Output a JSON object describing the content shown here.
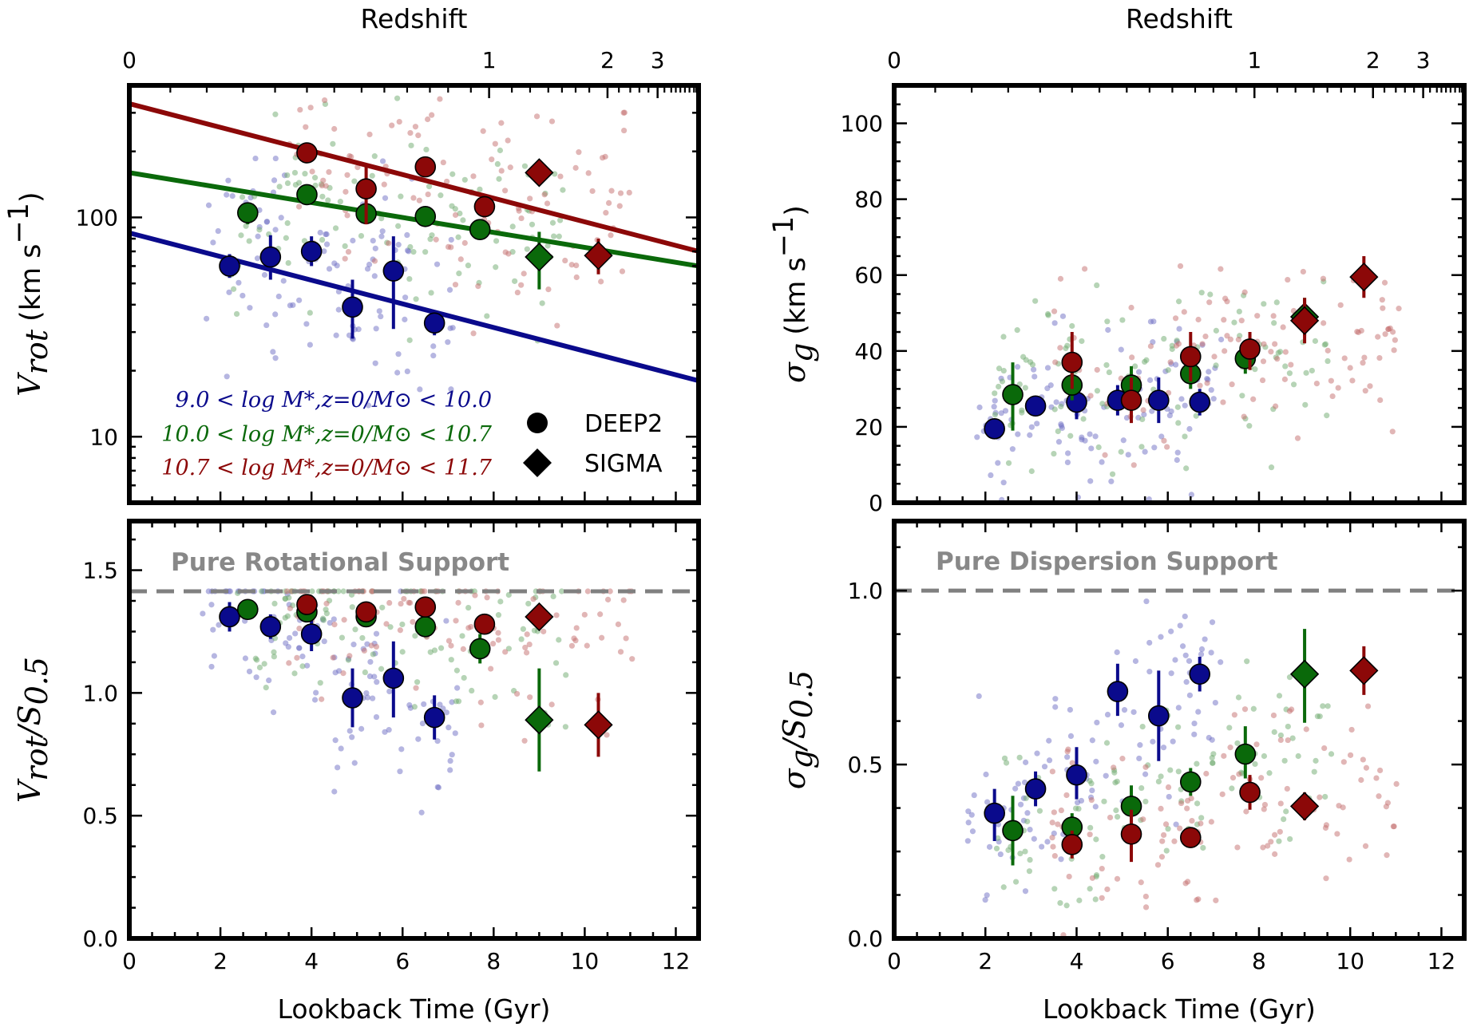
{
  "colors": {
    "low": "#0a0a8c",
    "mid": "#0a690a",
    "high": "#8c0808",
    "ref": "#808080",
    "scatter_low": "#6e6ec4",
    "scatter_mid": "#6eaa6e",
    "scatter_high": "#c46e6e"
  },
  "figure": {
    "top_axis_title": "Redshift",
    "bottom_axis_title": "Lookback Time (Gyr)",
    "redshift_ticks": [
      {
        "label": "0",
        "t": 0
      },
      {
        "label": "1",
        "t": 7.9
      },
      {
        "label": "2",
        "t": 10.5
      },
      {
        "label": "3",
        "t": 11.6
      }
    ],
    "redshift_minor_t": [
      0.9,
      1.7,
      2.5,
      3.2,
      3.9,
      4.5,
      5.1,
      5.6,
      6.1,
      6.6,
      7.0,
      7.5,
      8.4,
      8.8,
      9.2,
      9.5,
      9.8,
      10.1,
      10.75,
      11.0,
      11.2,
      11.4,
      11.75,
      11.9,
      12.0,
      12.1,
      12.2,
      12.3,
      12.4,
      12.45
    ]
  },
  "legend": {
    "mass_bins": [
      {
        "key": "low",
        "label": "9.0 < log M*,z=0/M⊙ < 10.0"
      },
      {
        "key": "mid",
        "label": "10.0 < log M*,z=0/M⊙ < 10.7"
      },
      {
        "key": "high",
        "label": "10.7 < log M*,z=0/M⊙ < 11.7"
      }
    ],
    "surveys": [
      {
        "marker": "circle",
        "label": "DEEP2"
      },
      {
        "marker": "diamond",
        "label": "SIGMA"
      }
    ]
  },
  "chart_data": [
    {
      "id": "vrot",
      "type": "scatter",
      "title": "",
      "xlabel": "Lookback Time (Gyr)",
      "ylabel": "Vrot (km s^-1)",
      "ylabel_parts": {
        "math": "V",
        "sub": "rot",
        "unit": "(km s",
        "exp": "−1",
        "close": ")"
      },
      "yscale": "log",
      "xlim": [
        0,
        12.5
      ],
      "ylim": [
        5,
        400
      ],
      "yticks": [
        {
          "v": 10,
          "label": "10"
        },
        {
          "v": 100,
          "label": "100"
        }
      ],
      "fit_lines": [
        {
          "key": "low",
          "x": [
            0,
            12.5
          ],
          "y": [
            85,
            18
          ]
        },
        {
          "key": "mid",
          "x": [
            0,
            12.5
          ],
          "y": [
            160,
            60
          ]
        },
        {
          "key": "high",
          "x": [
            0,
            12.5
          ],
          "y": [
            330,
            70
          ]
        }
      ],
      "series": [
        {
          "key": "low",
          "marker": "circle",
          "points": [
            {
              "x": 2.2,
              "y": 60,
              "lo": 53,
              "hi": 68
            },
            {
              "x": 3.1,
              "y": 66,
              "lo": 52,
              "hi": 83
            },
            {
              "x": 4.0,
              "y": 70,
              "lo": 60,
              "hi": 82
            },
            {
              "x": 4.9,
              "y": 39,
              "lo": 28,
              "hi": 52
            },
            {
              "x": 5.8,
              "y": 57,
              "lo": 31,
              "hi": 82
            },
            {
              "x": 6.7,
              "y": 33,
              "lo": 29,
              "hi": 37
            }
          ]
        },
        {
          "key": "mid",
          "marker": "circle",
          "points": [
            {
              "x": 2.6,
              "y": 105,
              "lo": 93,
              "hi": 117
            },
            {
              "x": 3.9,
              "y": 127,
              "lo": 115,
              "hi": 140
            },
            {
              "x": 5.2,
              "y": 104,
              "lo": 94,
              "hi": 115
            },
            {
              "x": 6.5,
              "y": 101,
              "lo": 92,
              "hi": 110
            },
            {
              "x": 7.7,
              "y": 88,
              "lo": 80,
              "hi": 97
            }
          ]
        },
        {
          "key": "high",
          "marker": "circle",
          "points": [
            {
              "x": 3.9,
              "y": 197,
              "lo": 182,
              "hi": 213
            },
            {
              "x": 5.2,
              "y": 135,
              "lo": 93,
              "hi": 170
            },
            {
              "x": 6.5,
              "y": 170,
              "lo": 155,
              "hi": 186
            },
            {
              "x": 7.8,
              "y": 112,
              "lo": 100,
              "hi": 125
            }
          ]
        },
        {
          "key": "mid",
          "marker": "diamond",
          "points": [
            {
              "x": 9.0,
              "y": 66,
              "lo": 47,
              "hi": 86
            }
          ]
        },
        {
          "key": "high",
          "marker": "diamond",
          "points": [
            {
              "x": 9.0,
              "y": 160,
              "lo": 145,
              "hi": 175
            },
            {
              "x": 10.3,
              "y": 67,
              "lo": 55,
              "hi": 80
            }
          ]
        }
      ]
    },
    {
      "id": "sigma",
      "type": "scatter",
      "title": "",
      "xlabel": "Lookback Time (Gyr)",
      "ylabel": "σg (km s^-1)",
      "ylabel_parts": {
        "math": "σ",
        "sub": "g",
        "unit": "(km s",
        "exp": "−1",
        "close": ")"
      },
      "yscale": "linear",
      "xlim": [
        0,
        12.5
      ],
      "ylim": [
        0,
        110
      ],
      "yticks": [
        {
          "v": 0,
          "label": "0"
        },
        {
          "v": 20,
          "label": "20"
        },
        {
          "v": 40,
          "label": "40"
        },
        {
          "v": 60,
          "label": "60"
        },
        {
          "v": 80,
          "label": "80"
        },
        {
          "v": 100,
          "label": "100"
        }
      ],
      "series": [
        {
          "key": "low",
          "marker": "circle",
          "points": [
            {
              "x": 2.2,
              "y": 19.5,
              "lo": 17,
              "hi": 22
            },
            {
              "x": 3.1,
              "y": 25.5,
              "lo": 23,
              "hi": 28
            },
            {
              "x": 4.0,
              "y": 26.5,
              "lo": 22,
              "hi": 31
            },
            {
              "x": 4.9,
              "y": 27,
              "lo": 23,
              "hi": 31
            },
            {
              "x": 5.8,
              "y": 27,
              "lo": 21,
              "hi": 33
            },
            {
              "x": 6.7,
              "y": 26.5,
              "lo": 23,
              "hi": 30
            }
          ]
        },
        {
          "key": "mid",
          "marker": "circle",
          "points": [
            {
              "x": 2.6,
              "y": 28.5,
              "lo": 19,
              "hi": 37
            },
            {
              "x": 3.9,
              "y": 31,
              "lo": 27,
              "hi": 35
            },
            {
              "x": 5.2,
              "y": 31,
              "lo": 26,
              "hi": 36
            },
            {
              "x": 6.5,
              "y": 34,
              "lo": 30,
              "hi": 38
            },
            {
              "x": 7.7,
              "y": 38,
              "lo": 34,
              "hi": 42
            }
          ]
        },
        {
          "key": "high",
          "marker": "circle",
          "points": [
            {
              "x": 3.9,
              "y": 37,
              "lo": 30,
              "hi": 45
            },
            {
              "x": 5.2,
              "y": 27,
              "lo": 21,
              "hi": 33
            },
            {
              "x": 6.5,
              "y": 38.5,
              "lo": 32,
              "hi": 45
            },
            {
              "x": 7.8,
              "y": 40.5,
              "lo": 35,
              "hi": 45
            }
          ]
        },
        {
          "key": "mid",
          "marker": "diamond",
          "points": [
            {
              "x": 9.0,
              "y": 49,
              "lo": 44,
              "hi": 54
            }
          ]
        },
        {
          "key": "high",
          "marker": "diamond",
          "points": [
            {
              "x": 9.0,
              "y": 48,
              "lo": 42,
              "hi": 54
            },
            {
              "x": 10.3,
              "y": 59.5,
              "lo": 54,
              "hi": 65
            }
          ]
        }
      ]
    },
    {
      "id": "vrot_s05",
      "type": "scatter",
      "title": "",
      "xlabel": "Lookback Time (Gyr)",
      "ylabel": "Vrot/S0.5",
      "ylabel_parts": {
        "math": "V",
        "sub": "rot",
        "slash": "/S",
        "sub2": "0.5"
      },
      "yscale": "linear",
      "xlim": [
        0,
        12.5
      ],
      "ylim": [
        0,
        1.7
      ],
      "yticks": [
        {
          "v": 0,
          "label": "0.0"
        },
        {
          "v": 0.5,
          "label": "0.5"
        },
        {
          "v": 1.0,
          "label": "1.0"
        },
        {
          "v": 1.5,
          "label": "1.5"
        }
      ],
      "reference_line": {
        "y": 1.414,
        "label": "Pure Rotational Support"
      },
      "series": [
        {
          "key": "low",
          "marker": "circle",
          "points": [
            {
              "x": 2.2,
              "y": 1.31,
              "lo": 1.25,
              "hi": 1.37
            },
            {
              "x": 3.1,
              "y": 1.27,
              "lo": 1.22,
              "hi": 1.32
            },
            {
              "x": 4.0,
              "y": 1.24,
              "lo": 1.17,
              "hi": 1.31
            },
            {
              "x": 4.9,
              "y": 0.98,
              "lo": 0.86,
              "hi": 1.1
            },
            {
              "x": 5.8,
              "y": 1.06,
              "lo": 0.9,
              "hi": 1.21
            },
            {
              "x": 6.7,
              "y": 0.9,
              "lo": 0.81,
              "hi": 0.99
            }
          ]
        },
        {
          "key": "mid",
          "marker": "circle",
          "points": [
            {
              "x": 2.6,
              "y": 1.34,
              "lo": 1.3,
              "hi": 1.38
            },
            {
              "x": 3.9,
              "y": 1.33,
              "lo": 1.29,
              "hi": 1.37
            },
            {
              "x": 5.2,
              "y": 1.31,
              "lo": 1.27,
              "hi": 1.35
            },
            {
              "x": 6.5,
              "y": 1.27,
              "lo": 1.23,
              "hi": 1.31
            },
            {
              "x": 7.7,
              "y": 1.18,
              "lo": 1.12,
              "hi": 1.24
            }
          ]
        },
        {
          "key": "high",
          "marker": "circle",
          "points": [
            {
              "x": 3.9,
              "y": 1.36,
              "lo": 1.32,
              "hi": 1.4
            },
            {
              "x": 5.2,
              "y": 1.33,
              "lo": 1.3,
              "hi": 1.36
            },
            {
              "x": 6.5,
              "y": 1.35,
              "lo": 1.31,
              "hi": 1.39
            },
            {
              "x": 7.8,
              "y": 1.28,
              "lo": 1.24,
              "hi": 1.32
            }
          ]
        },
        {
          "key": "mid",
          "marker": "diamond",
          "points": [
            {
              "x": 9.0,
              "y": 0.89,
              "lo": 0.68,
              "hi": 1.1
            }
          ]
        },
        {
          "key": "high",
          "marker": "diamond",
          "points": [
            {
              "x": 9.0,
              "y": 1.31,
              "lo": 1.28,
              "hi": 1.34
            },
            {
              "x": 10.3,
              "y": 0.87,
              "lo": 0.74,
              "hi": 1.0
            }
          ]
        }
      ]
    },
    {
      "id": "sigma_s05",
      "type": "scatter",
      "title": "",
      "xlabel": "Lookback Time (Gyr)",
      "ylabel": "σg/S0.5",
      "ylabel_parts": {
        "math": "σ",
        "sub": "g",
        "slash": "/S",
        "sub2": "0.5"
      },
      "yscale": "linear",
      "xlim": [
        0,
        12.5
      ],
      "ylim": [
        0,
        1.2
      ],
      "yticks": [
        {
          "v": 0,
          "label": "0.0"
        },
        {
          "v": 0.5,
          "label": "0.5"
        },
        {
          "v": 1.0,
          "label": "1.0"
        }
      ],
      "reference_line": {
        "y": 1.0,
        "label": "Pure Dispersion Support"
      },
      "series": [
        {
          "key": "low",
          "marker": "circle",
          "points": [
            {
              "x": 2.2,
              "y": 0.36,
              "lo": 0.28,
              "hi": 0.43
            },
            {
              "x": 3.1,
              "y": 0.43,
              "lo": 0.38,
              "hi": 0.48
            },
            {
              "x": 4.0,
              "y": 0.47,
              "lo": 0.4,
              "hi": 0.55
            },
            {
              "x": 4.9,
              "y": 0.71,
              "lo": 0.64,
              "hi": 0.79
            },
            {
              "x": 5.8,
              "y": 0.64,
              "lo": 0.51,
              "hi": 0.77
            },
            {
              "x": 6.7,
              "y": 0.76,
              "lo": 0.71,
              "hi": 0.81
            }
          ]
        },
        {
          "key": "mid",
          "marker": "circle",
          "points": [
            {
              "x": 2.6,
              "y": 0.31,
              "lo": 0.21,
              "hi": 0.41
            },
            {
              "x": 3.9,
              "y": 0.32,
              "lo": 0.28,
              "hi": 0.36
            },
            {
              "x": 5.2,
              "y": 0.38,
              "lo": 0.32,
              "hi": 0.44
            },
            {
              "x": 6.5,
              "y": 0.45,
              "lo": 0.41,
              "hi": 0.49
            },
            {
              "x": 7.7,
              "y": 0.53,
              "lo": 0.46,
              "hi": 0.61
            }
          ]
        },
        {
          "key": "high",
          "marker": "circle",
          "points": [
            {
              "x": 3.9,
              "y": 0.27,
              "lo": 0.23,
              "hi": 0.31
            },
            {
              "x": 5.2,
              "y": 0.3,
              "lo": 0.22,
              "hi": 0.37
            },
            {
              "x": 6.5,
              "y": 0.29,
              "lo": 0.26,
              "hi": 0.32
            },
            {
              "x": 7.8,
              "y": 0.42,
              "lo": 0.37,
              "hi": 0.47
            }
          ]
        },
        {
          "key": "mid",
          "marker": "diamond",
          "points": [
            {
              "x": 9.0,
              "y": 0.76,
              "lo": 0.62,
              "hi": 0.89
            }
          ]
        },
        {
          "key": "high",
          "marker": "diamond",
          "points": [
            {
              "x": 9.0,
              "y": 0.38,
              "lo": 0.34,
              "hi": 0.42
            },
            {
              "x": 10.3,
              "y": 0.77,
              "lo": 0.7,
              "hi": 0.84
            }
          ]
        }
      ]
    }
  ]
}
